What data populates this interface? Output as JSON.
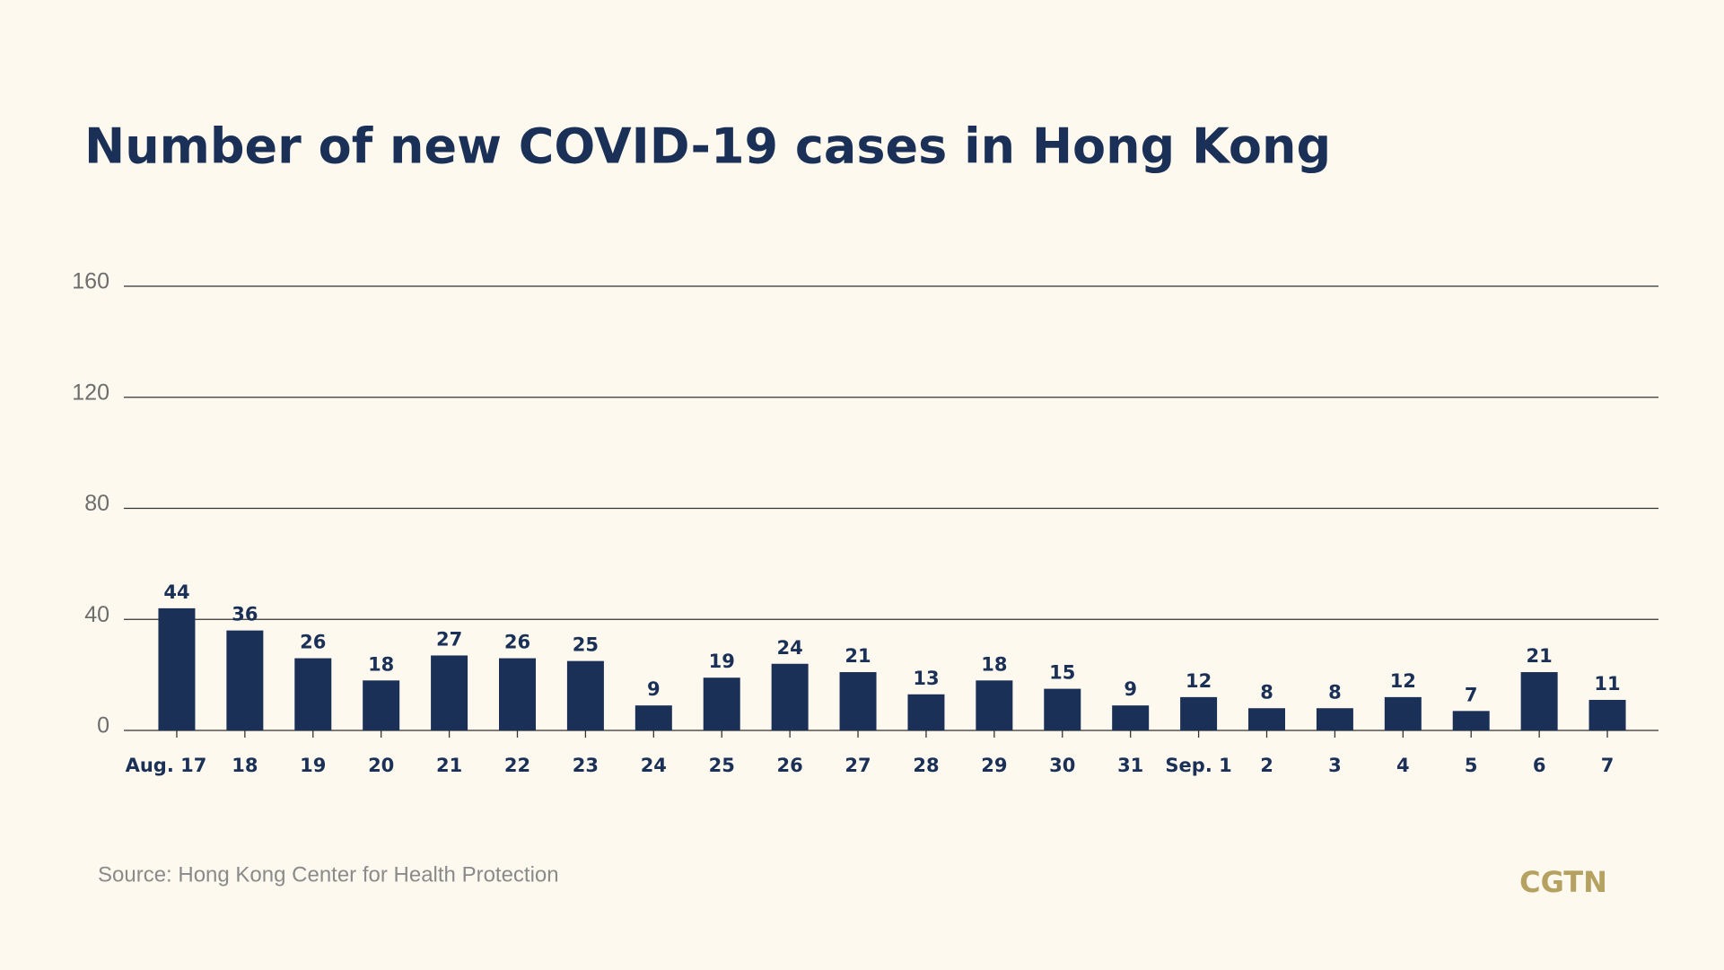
{
  "chart_data": {
    "type": "bar",
    "title": "Number of new COVID-19 cases in Hong Kong",
    "categories": [
      "Aug. 17",
      "18",
      "19",
      "20",
      "21",
      "22",
      "23",
      "24",
      "25",
      "26",
      "27",
      "28",
      "29",
      "30",
      "31",
      "Sep. 1",
      "2",
      "3",
      "4",
      "5",
      "6",
      "7"
    ],
    "values": [
      44,
      36,
      26,
      18,
      27,
      26,
      25,
      9,
      19,
      24,
      21,
      13,
      18,
      15,
      9,
      12,
      8,
      8,
      12,
      7,
      21,
      11
    ],
    "color": "#1b3057",
    "ylim": [
      0,
      160
    ],
    "yticks": [
      0,
      40,
      80,
      120,
      160
    ],
    "grid": true,
    "source": "Source: Hong Kong Center for Health Protection",
    "logo": "CGTN"
  }
}
